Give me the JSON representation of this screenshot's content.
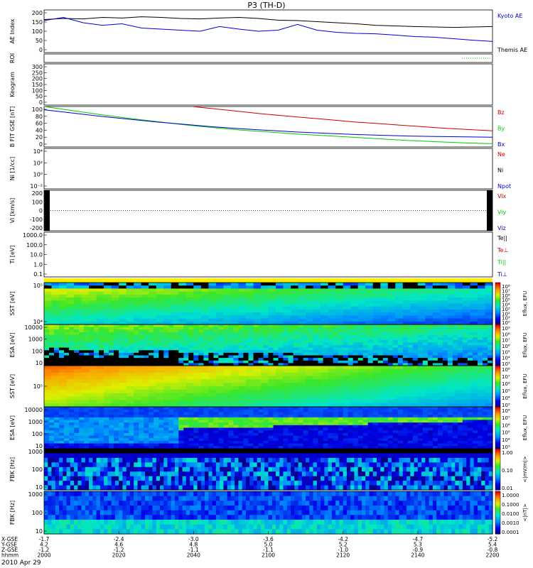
{
  "title": "P3 (TH-D)",
  "date": "2010 Apr 29",
  "colors": {
    "blue": "#0000cc",
    "green": "#00cc00",
    "red": "#cc0000",
    "black": "#000000",
    "yellow": "#ffee00"
  },
  "chart_data": {
    "type": "line",
    "x_axis": {
      "ticks": [
        "2000",
        "2020",
        "2040",
        "2100",
        "2120",
        "2140",
        "2200"
      ],
      "rows": [
        {
          "label": "X-GSE",
          "values": [
            "-1.7",
            "-2.4",
            "-3.0",
            "-3.6",
            "-4.2",
            "-4.7",
            "-5.2"
          ]
        },
        {
          "label": "Y-GSE",
          "values": [
            "4.2",
            "4.6",
            "4.8",
            "5.0",
            "5.2",
            "5.3",
            "5.4"
          ]
        },
        {
          "label": "Z-GSE",
          "values": [
            "-1.2",
            "-1.2",
            "-1.1",
            "-1.1",
            "-1.0",
            "-0.9",
            "-0.8"
          ]
        },
        {
          "label": "hhmm",
          "values": [
            "2000",
            "2020",
            "2040",
            "2100",
            "2120",
            "2140",
            "2200"
          ]
        }
      ]
    },
    "panels": [
      {
        "id": "ae",
        "ylabel": "AE Index",
        "yticks": [
          "200",
          "150",
          "100",
          "50",
          "0"
        ],
        "ylim": [
          0,
          200
        ],
        "legend": [
          "Kyoto AE",
          "Themis AE"
        ],
        "series": [
          {
            "name": "Themis AE",
            "color": "#000000",
            "y": [
              155,
              160,
              158,
              165,
              162,
              168,
              165,
              160,
              158,
              162,
              165,
              160,
              152,
              150,
              145,
              140,
              135,
              128,
              125,
              122,
              120,
              118,
              120,
              122
            ]
          },
          {
            "name": "Kyoto AE",
            "color": "#0000cc",
            "y": [
              150,
              165,
              140,
              128,
              135,
              115,
              110,
              105,
              100,
              122,
              110,
              100,
              105,
              132,
              105,
              95,
              90,
              88,
              82,
              75,
              72,
              65,
              58,
              52
            ]
          }
        ]
      },
      {
        "id": "roi",
        "ylabel": "ROI",
        "yticks": []
      },
      {
        "id": "kgm",
        "ylabel": "Keogram",
        "yticks": [
          "300",
          "250",
          "200",
          "150",
          "100",
          "50",
          "0"
        ]
      },
      {
        "id": "bfit",
        "ylabel": "B FIT GSE [nT]",
        "yticks": [
          "100",
          "80",
          "60",
          "40",
          "20",
          "0"
        ],
        "ylim": [
          0,
          100
        ],
        "legend": [
          "Bz",
          "By",
          "Bx"
        ],
        "series": [
          {
            "name": "Bz",
            "color": "#cc0000",
            "x_start": 0.33,
            "y": [
              100,
              94,
              88,
              82,
              77,
              72,
              67,
              62,
              58,
              54,
              50,
              46,
              43,
              40
            ]
          },
          {
            "name": "By",
            "color": "#00cc00",
            "y": [
              100,
              90,
              80,
              71,
              63,
              55,
              48,
              42,
              37,
              32,
              28,
              24,
              20,
              16,
              13,
              10,
              8
            ]
          },
          {
            "name": "Bx",
            "color": "#0000cc",
            "y": [
              92,
              84,
              76,
              69,
              62,
              56,
              50,
              45,
              41,
              37,
              34,
              31,
              29,
              27,
              26,
              25,
              24
            ]
          }
        ]
      },
      {
        "id": "ni",
        "ylabel": "Ni [1/cc]",
        "yticks": [
          "10⁴",
          "10²",
          "10⁰",
          "10⁻²"
        ],
        "legend": [
          "Ne",
          "Ni",
          "Npot"
        ]
      },
      {
        "id": "vi",
        "ylabel": "Vi [km/s]",
        "yticks": [
          "200",
          "100",
          "0",
          "-100",
          "-200"
        ],
        "legend": [
          "Vix",
          "Viy",
          "Viz"
        ]
      },
      {
        "id": "ti",
        "ylabel": "Ti [eV]",
        "yticks": [
          "1000.0",
          "100.0",
          "10.0",
          "1.0",
          "0.1"
        ],
        "legend": [
          "Te||",
          "Te⊥",
          "Ti||",
          "Ti⊥"
        ]
      },
      {
        "id": "sst-e",
        "ylabel": "SST [eV]",
        "yticks": [
          "10⁵",
          "10⁴"
        ],
        "cbar": [
          "10⁸",
          "10⁷",
          "10⁶",
          "10⁵",
          "10⁴",
          "10³",
          "10²",
          "10¹",
          "10⁰"
        ],
        "cbar_label": "Eflux, EFU"
      },
      {
        "id": "esa-e",
        "ylabel": "ESA [eV]",
        "yticks": [
          "10000",
          "1000",
          "100",
          "10"
        ],
        "cbar": [
          "10⁹",
          "10⁸",
          "10⁷",
          "10⁶",
          "10⁵",
          "10⁴",
          "10³"
        ],
        "cbar_label": "Eflux, EFU"
      },
      {
        "id": "sst-i",
        "ylabel": "SST [eV]",
        "yticks": [
          "10⁵"
        ],
        "cbar": [
          "10⁸",
          "10⁷",
          "10⁶",
          "10⁵",
          "10⁴",
          "10³"
        ],
        "cbar_label": "Eflux, EFU"
      },
      {
        "id": "esa-i",
        "ylabel": "ESA [eV]",
        "yticks": [
          "10000",
          "1000",
          "100",
          "10"
        ],
        "cbar": [
          "10⁸",
          "10⁷",
          "10⁶",
          "10⁵",
          "10⁴",
          "10³"
        ],
        "cbar_label": "Eflux, EFU"
      },
      {
        "id": "fbk1",
        "ylabel": "FBK [Hz]",
        "yticks": [
          "1000",
          "100",
          "10"
        ],
        "cbar": [
          "1.00",
          "0.10",
          "0.01"
        ],
        "cbar_label": "<|mV/m|>"
      },
      {
        "id": "fbk2",
        "ylabel": "FBK [Hz]",
        "yticks": [
          "1000",
          "100",
          "10"
        ],
        "cbar": [
          "1.0000",
          "0.1000",
          "0.0100",
          "0.0010",
          "0.0001"
        ],
        "cbar_label": "<|nT|>"
      }
    ]
  }
}
